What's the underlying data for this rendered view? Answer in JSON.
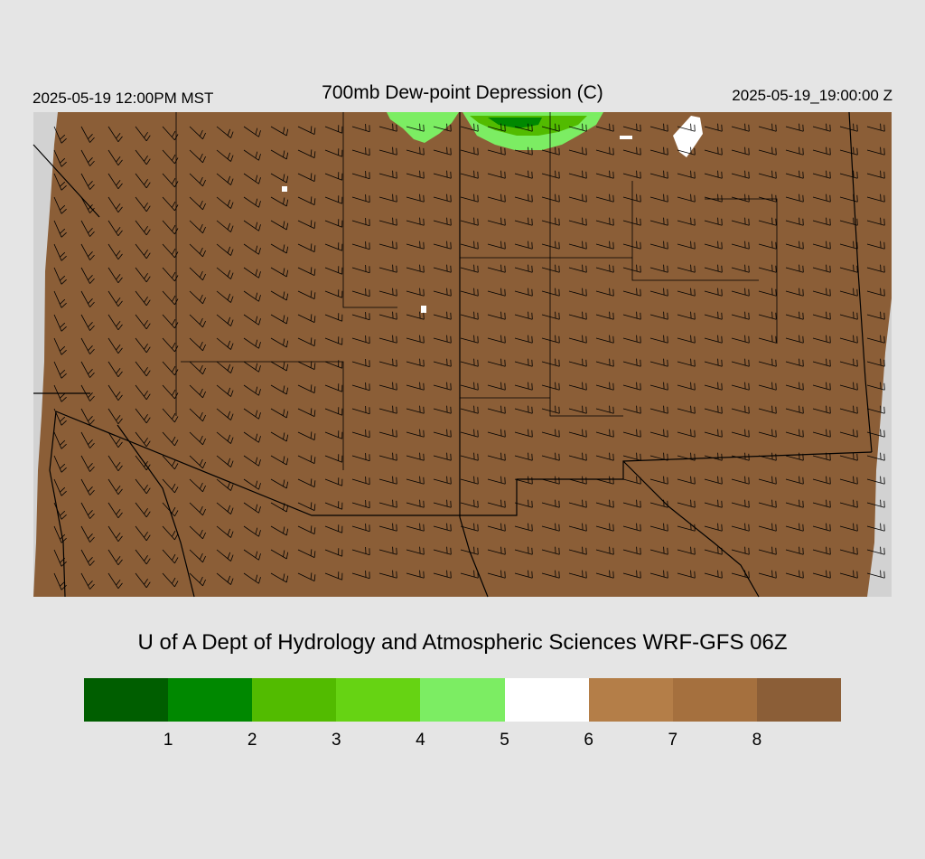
{
  "header": {
    "valid_local": "2025-05-19 12:00PM MST",
    "title": "700mb Dew-point Depression (C)",
    "valid_utc": "2025-05-19_19:00:00 Z"
  },
  "credit": "U of A Dept of Hydrology and Atmospheric Sciences WRF-GFS 06Z",
  "colorbar": {
    "colors": [
      "#005e00",
      "#008800",
      "#52bb00",
      "#66d313",
      "#7ced63",
      "#ffffff",
      "#b47e48",
      "#a5703e",
      "#8b5e37"
    ],
    "labels": [
      "1",
      "2",
      "3",
      "4",
      "5",
      "6",
      "7",
      "8"
    ]
  },
  "map": {
    "fill_color": "#8b5e37",
    "background_color": "#d2d2d2",
    "moist_colors": [
      "#7ced63",
      "#52bb00",
      "#008800",
      "#ffffff"
    ]
  }
}
